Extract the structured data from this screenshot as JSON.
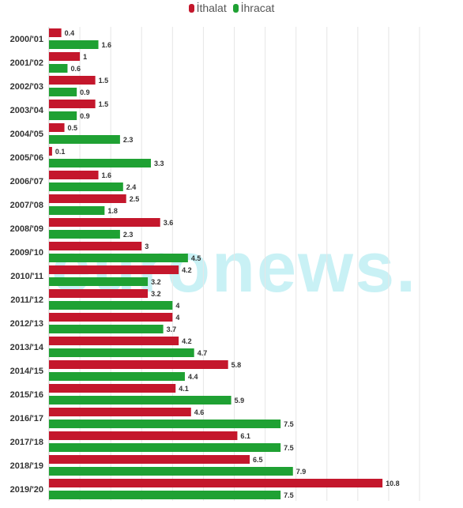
{
  "chart_data": {
    "type": "bar",
    "orientation": "horizontal",
    "categories": [
      "2000/'01",
      "2001/'02",
      "2002/'03",
      "2003/'04",
      "2004/'05",
      "2005/'06",
      "2006/'07",
      "2007/'08",
      "2008/'09",
      "2009/'10",
      "2010/'11",
      "2011/'12",
      "2012/'13",
      "2013/'14",
      "2014/'15",
      "2015/'16",
      "2016/'17",
      "2017/'18",
      "2018/'19",
      "2019/'20"
    ],
    "series": [
      {
        "name": "İthalat",
        "color": "#c4172c",
        "values": [
          0.4,
          1,
          1.5,
          1.5,
          0.5,
          0.1,
          1.6,
          2.5,
          3.6,
          3,
          4.2,
          3.2,
          4,
          4.2,
          5.8,
          4.1,
          4.6,
          6.1,
          6.5,
          10.8
        ]
      },
      {
        "name": "İhracat",
        "color": "#1fa133",
        "values": [
          1.6,
          0.6,
          0.9,
          0.9,
          2.3,
          3.3,
          2.4,
          1.8,
          2.3,
          4.5,
          3.2,
          4,
          3.7,
          4.7,
          4.4,
          5.9,
          7.5,
          7.5,
          7.9,
          7.5
        ]
      }
    ],
    "xlim": [
      0,
      12
    ],
    "grid": true,
    "legend": "top-center",
    "title": "",
    "xlabel": "",
    "ylabel": ""
  },
  "watermark": "euronews."
}
